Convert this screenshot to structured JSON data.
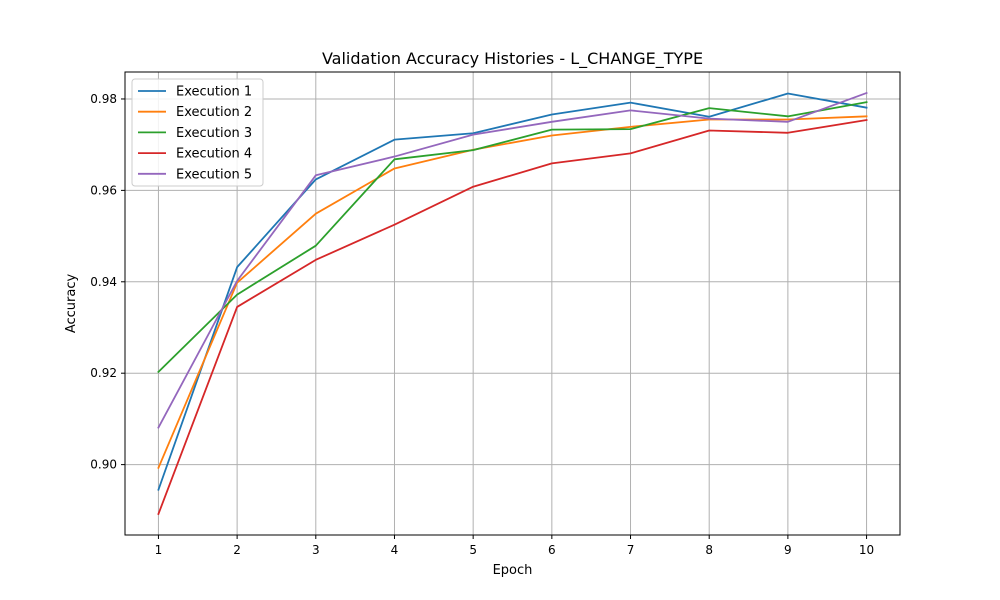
{
  "chart_data": {
    "type": "line",
    "title": "Validation Accuracy Histories - L_CHANGE_TYPE",
    "xlabel": "Epoch",
    "ylabel": "Accuracy",
    "x": [
      1,
      2,
      3,
      4,
      5,
      6,
      7,
      8,
      9,
      10
    ],
    "xlim": [
      0.575,
      10.425
    ],
    "ylim": [
      0.8846,
      0.9859
    ],
    "xticks": [
      "1",
      "2",
      "3",
      "4",
      "5",
      "6",
      "7",
      "8",
      "9",
      "10"
    ],
    "yticks": [
      0.9,
      0.92,
      0.94,
      0.96,
      0.98
    ],
    "ytick_labels": [
      "0.90",
      "0.92",
      "0.94",
      "0.96",
      "0.98"
    ],
    "grid": true,
    "legend_position": "upper-left",
    "series": [
      {
        "name": "Execution 1",
        "color": "#1f77b4",
        "values": [
          0.8945,
          0.9432,
          0.9624,
          0.9711,
          0.9725,
          0.9766,
          0.9792,
          0.9761,
          0.9812,
          0.9781
        ]
      },
      {
        "name": "Execution 2",
        "color": "#ff7f0e",
        "values": [
          0.8993,
          0.9398,
          0.9549,
          0.9648,
          0.9689,
          0.972,
          0.9739,
          0.9755,
          0.9755,
          0.9762
        ]
      },
      {
        "name": "Execution 3",
        "color": "#2ca02c",
        "values": [
          0.9203,
          0.9372,
          0.9479,
          0.9668,
          0.9688,
          0.9733,
          0.9734,
          0.978,
          0.9762,
          0.9793
        ]
      },
      {
        "name": "Execution 4",
        "color": "#d62728",
        "values": [
          0.8892,
          0.9345,
          0.9448,
          0.9525,
          0.9608,
          0.9659,
          0.9681,
          0.9731,
          0.9726,
          0.9754
        ]
      },
      {
        "name": "Execution 5",
        "color": "#9467bd",
        "values": [
          0.9081,
          0.9402,
          0.9633,
          0.9674,
          0.9722,
          0.975,
          0.9775,
          0.9757,
          0.975,
          0.9813
        ]
      }
    ]
  }
}
